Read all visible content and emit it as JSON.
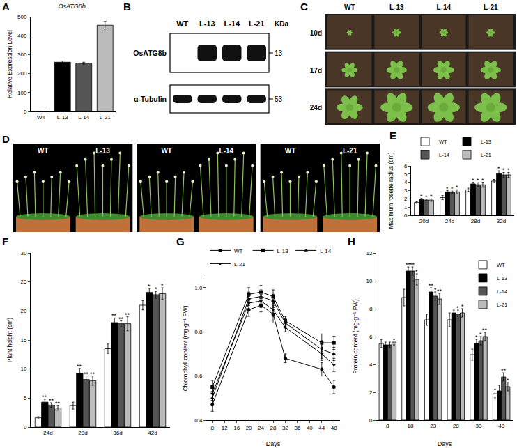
{
  "chart_data": [
    {
      "panel": "A",
      "type": "bar",
      "title": "OsATG8b",
      "y_label": "Relative Expression Level",
      "categories": [
        "WT",
        "L-13",
        "L-14",
        "L-21"
      ],
      "values": [
        1,
        260,
        255,
        455
      ],
      "errors": [
        0,
        6,
        5,
        20
      ],
      "colors": [
        "#ffffff",
        "#000000",
        "#555555",
        "#bbbbbb"
      ],
      "ylim": [
        0,
        500
      ],
      "yticks": [
        0,
        100,
        200,
        300,
        400,
        500
      ],
      "grid": false
    },
    {
      "panel": "E",
      "type": "bar",
      "y_label": "Maximum rosette radius (cm)",
      "categories": [
        "20d",
        "24d",
        "28d",
        "32d"
      ],
      "series": [
        {
          "name": "WT",
          "color": "#ffffff",
          "values": [
            1.55,
            2.15,
            3.1,
            4.15
          ],
          "errors": [
            0.1,
            0.25,
            0.2,
            0.2
          ],
          "significance": [
            null,
            null,
            null,
            null
          ]
        },
        {
          "name": "L-13",
          "color": "#000000",
          "values": [
            1.9,
            2.85,
            3.8,
            5.05
          ],
          "errors": [
            0.15,
            0.15,
            0.2,
            0.35
          ],
          "significance": [
            "*",
            "*",
            "*",
            "*"
          ]
        },
        {
          "name": "L-14",
          "color": "#555555",
          "values": [
            1.85,
            2.8,
            3.7,
            4.9
          ],
          "errors": [
            0.12,
            0.15,
            0.25,
            0.3
          ],
          "significance": [
            "*",
            "*",
            "*",
            "*"
          ]
        },
        {
          "name": "L-21",
          "color": "#bbbbbb",
          "values": [
            1.85,
            2.85,
            3.7,
            4.9
          ],
          "errors": [
            0.15,
            0.25,
            0.3,
            0.3
          ],
          "significance": [
            "*",
            "*",
            "*",
            "*"
          ]
        }
      ],
      "ylim": [
        0,
        6
      ],
      "yticks": [
        0,
        1,
        2,
        3,
        4,
        5,
        6
      ],
      "legend": "top",
      "grid": false
    },
    {
      "panel": "F",
      "type": "bar",
      "y_label": "Plant height (cm)",
      "categories": [
        "24d",
        "28d",
        "36d",
        "42d"
      ],
      "series": [
        {
          "name": "WT",
          "color": "#ffffff",
          "values": [
            1.6,
            3.7,
            13.5,
            21
          ],
          "errors": [
            0.2,
            0.6,
            0.8,
            0.8
          ],
          "significance": [
            null,
            null,
            null,
            null
          ]
        },
        {
          "name": "L-13",
          "color": "#000000",
          "values": [
            4.3,
            9.3,
            18,
            23.2
          ],
          "errors": [
            0.5,
            0.8,
            0.8,
            0.7
          ],
          "significance": [
            "**",
            "**",
            "**",
            "*"
          ]
        },
        {
          "name": "L-14",
          "color": "#555555",
          "values": [
            3.8,
            8.2,
            17.8,
            22.8
          ],
          "errors": [
            0.4,
            0.6,
            0.5,
            0.6
          ],
          "significance": [
            "**",
            "**",
            "**",
            "*"
          ]
        },
        {
          "name": "L-21",
          "color": "#bbbbbb",
          "values": [
            3.3,
            8,
            17.8,
            23
          ],
          "errors": [
            0.4,
            0.8,
            1.2,
            1.0
          ],
          "significance": [
            "**",
            "**",
            "**",
            "*"
          ]
        }
      ],
      "ylim": [
        0,
        30
      ],
      "yticks": [
        0,
        5,
        10,
        15,
        20,
        25,
        30
      ],
      "grid": false
    },
    {
      "panel": "G",
      "type": "line",
      "x_label": "Days",
      "y_label": "Chlorophyll content (mg·g⁻¹ FW)",
      "x": [
        8,
        20,
        24,
        28,
        32,
        44,
        48
      ],
      "series": [
        {
          "name": "WT",
          "color": "#000000",
          "marker": "circle",
          "line_style": "solid",
          "values": [
            0.47,
            0.9,
            0.92,
            0.88,
            0.68,
            0.63,
            0.55
          ],
          "errors": [
            0.03,
            0.03,
            0.03,
            0.04,
            0.02,
            0.03,
            0.03
          ]
        },
        {
          "name": "L-13",
          "color": "#000000",
          "marker": "square",
          "line_style": "solid",
          "values": [
            0.55,
            0.97,
            0.98,
            0.96,
            0.85,
            0.75,
            0.75
          ],
          "errors": [
            0.03,
            0.03,
            0.03,
            0.03,
            0.02,
            0.04,
            0.03
          ]
        },
        {
          "name": "L-14",
          "color": "#000000",
          "marker": "triangle-up",
          "line_style": "solid",
          "values": [
            0.5,
            0.95,
            0.96,
            0.94,
            0.84,
            0.72,
            0.7
          ],
          "errors": [
            0.03,
            0.03,
            0.03,
            0.03,
            0.02,
            0.04,
            0.03
          ]
        },
        {
          "name": "L-21",
          "color": "#000000",
          "marker": "triangle-down",
          "line_style": "solid",
          "values": [
            0.52,
            0.93,
            0.94,
            0.9,
            0.82,
            0.7,
            0.65
          ],
          "errors": [
            0.03,
            0.03,
            0.03,
            0.03,
            0.02,
            0.03,
            0.03
          ]
        }
      ],
      "xlim": [
        6,
        50
      ],
      "xticks": [
        8,
        12,
        16,
        20,
        24,
        28,
        32,
        36,
        40,
        44,
        48
      ],
      "ylim": [
        0.4,
        1.05
      ],
      "yticks": [
        0.4,
        0.6,
        0.8,
        {
          "value": 1,
          "label": "1.0"
        }
      ],
      "legend": "top",
      "grid": false
    },
    {
      "panel": "H",
      "type": "bar",
      "x_label": "Days",
      "y_label": "Protein content (mg·g⁻¹ FW)",
      "categories": [
        "8",
        "18",
        "23",
        "28",
        "33",
        "48"
      ],
      "series": [
        {
          "name": "WT",
          "color": "#ffffff",
          "values": [
            5.5,
            8.8,
            7.2,
            7.2,
            4.7,
            1.9
          ],
          "errors": [
            0.3,
            0.6,
            0.4,
            0.5,
            0.4,
            0.3
          ],
          "significance": [
            null,
            null,
            null,
            null,
            null,
            null
          ]
        },
        {
          "name": "L-13",
          "color": "#000000",
          "values": [
            5.4,
            10.7,
            9.2,
            7.7,
            5.5,
            2.1
          ],
          "errors": [
            0.2,
            0.3,
            0.3,
            0.2,
            0.3,
            0.4
          ],
          "significance": [
            null,
            "**",
            "**",
            null,
            "*",
            null
          ]
        },
        {
          "name": "L-14",
          "color": "#555555",
          "values": [
            5.4,
            10.7,
            8.9,
            7.6,
            5.7,
            3.1
          ],
          "errors": [
            0.2,
            0.3,
            0.3,
            0.3,
            0.3,
            0.3
          ],
          "significance": [
            null,
            "**",
            "*",
            "*",
            "*",
            "**"
          ]
        },
        {
          "name": "L-21",
          "color": "#bbbbbb",
          "values": [
            5.6,
            10.1,
            8.7,
            7.7,
            6.0,
            2.4
          ],
          "errors": [
            0.2,
            0.4,
            0.4,
            0.3,
            0.3,
            0.3
          ],
          "significance": [
            null,
            "*",
            "**",
            "*",
            "**",
            "*"
          ]
        }
      ],
      "ylim": [
        0,
        12
      ],
      "yticks": [
        0,
        2,
        4,
        6,
        8,
        10,
        12
      ],
      "legend": "top-right",
      "grid": false
    }
  ],
  "blot": {
    "panel": "B",
    "lanes": [
      "WT",
      "L-13",
      "L-14",
      "L-21"
    ],
    "size_unit": "KDa",
    "rows": [
      {
        "label": "OsATG8b",
        "size": "13",
        "bands": [
          false,
          true,
          true,
          true
        ]
      },
      {
        "label": "α-Tubulin",
        "size": "53",
        "bands": [
          true,
          true,
          true,
          true
        ]
      }
    ]
  },
  "photos_c": {
    "panel": "C",
    "columns": [
      "WT",
      "L-13",
      "L-14",
      "L-21"
    ],
    "rows": [
      "10d",
      "17d",
      "24d"
    ]
  },
  "photos_d": {
    "panel": "D",
    "pairs": [
      [
        "WT",
        "L-13"
      ],
      [
        "WT",
        "L-14"
      ],
      [
        "WT",
        "L-21"
      ]
    ]
  }
}
